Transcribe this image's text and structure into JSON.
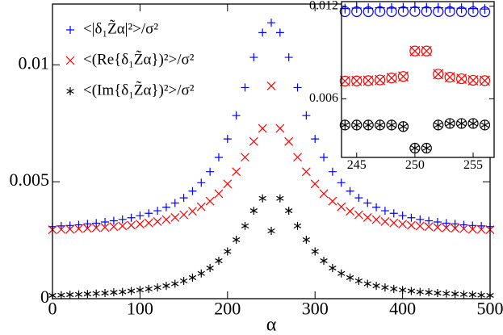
{
  "chart_data": [
    {
      "type": "scatter",
      "xlabel": "α",
      "legend": "upper left",
      "xlim": [
        0,
        500
      ],
      "xticks": [
        0,
        100,
        200,
        300,
        400,
        500
      ],
      "ylim": [
        0,
        0.0126
      ],
      "yticks": [
        0,
        0.005,
        0.01
      ],
      "x": [
        0,
        10,
        20,
        30,
        40,
        50,
        60,
        70,
        80,
        90,
        100,
        110,
        120,
        130,
        140,
        150,
        160,
        170,
        180,
        190,
        200,
        210,
        220,
        230,
        240,
        250,
        260,
        270,
        280,
        290,
        300,
        310,
        320,
        330,
        340,
        350,
        360,
        370,
        380,
        390,
        400,
        410,
        420,
        430,
        440,
        450,
        460,
        470,
        480,
        490,
        500
      ],
      "series": [
        {
          "name": "<|δ₁Z̃α|²>/σ²",
          "color": "#0000ff",
          "marker": "plus",
          "values": [
            0.00308,
            0.00311,
            0.00313,
            0.00316,
            0.0032,
            0.00323,
            0.00328,
            0.00333,
            0.00339,
            0.00346,
            0.00355,
            0.00365,
            0.00376,
            0.00391,
            0.00409,
            0.00431,
            0.0046,
            0.00496,
            0.00543,
            0.00604,
            0.00683,
            0.00783,
            0.00903,
            0.01032,
            0.01138,
            0.0118,
            0.01138,
            0.01032,
            0.00903,
            0.00783,
            0.00683,
            0.00604,
            0.00543,
            0.00496,
            0.0046,
            0.00431,
            0.00409,
            0.00391,
            0.00376,
            0.00365,
            0.00355,
            0.00346,
            0.00339,
            0.00333,
            0.00328,
            0.00323,
            0.0032,
            0.00316,
            0.00313,
            0.00311,
            0.00308
          ]
        },
        {
          "name": "<(Re{δ₁Z̃α})²>/σ²",
          "color": "#ff0000",
          "marker": "cross",
          "values": [
            0.00295,
            0.00296,
            0.00297,
            0.00299,
            0.00301,
            0.00303,
            0.00305,
            0.00308,
            0.00311,
            0.00314,
            0.00319,
            0.00324,
            0.0033,
            0.00338,
            0.00347,
            0.00359,
            0.00374,
            0.00393,
            0.00417,
            0.00449,
            0.00491,
            0.00543,
            0.00605,
            0.00672,
            0.00728,
            0.0091,
            0.00728,
            0.00672,
            0.00605,
            0.00543,
            0.00491,
            0.00449,
            0.00417,
            0.00393,
            0.00374,
            0.00359,
            0.00347,
            0.00338,
            0.0033,
            0.00324,
            0.00319,
            0.00314,
            0.00311,
            0.00308,
            0.00305,
            0.00303,
            0.00301,
            0.00299,
            0.00297,
            0.00296,
            0.00295
          ]
        },
        {
          "name": "<(Im{δ₁Z̃α})²>/σ²",
          "color": "#000000",
          "marker": "star",
          "values": [
            0.00014,
            0.00015,
            0.00017,
            0.00018,
            0.0002,
            0.00022,
            0.00024,
            0.00027,
            0.00029,
            0.00033,
            0.00037,
            0.00042,
            0.00048,
            0.00055,
            0.00064,
            0.00076,
            0.0009,
            0.00108,
            0.00131,
            0.00162,
            0.00202,
            0.00252,
            0.00311,
            0.00376,
            0.00429,
            0.0029,
            0.00429,
            0.00376,
            0.00311,
            0.00252,
            0.00202,
            0.00162,
            0.00131,
            0.00108,
            0.0009,
            0.00076,
            0.00064,
            0.00055,
            0.00048,
            0.00042,
            0.00037,
            0.00033,
            0.00029,
            0.00027,
            0.00024,
            0.00022,
            0.0002,
            0.00018,
            0.00017,
            0.00015,
            0.00014
          ]
        }
      ]
    },
    {
      "type": "scatter",
      "xlim": [
        243.7,
        256.8
      ],
      "xticks": [
        245,
        250,
        255
      ],
      "ylim": [
        0.0022,
        0.0123
      ],
      "yticks": [
        0.006,
        0.012
      ],
      "x": [
        244,
        245,
        246,
        247,
        248,
        249,
        250,
        251,
        252,
        253,
        254,
        255,
        256
      ],
      "series": [
        {
          "color": "#0000ff",
          "marker": "circle",
          "values": [
            0.01165,
            0.01165,
            0.01165,
            0.01166,
            0.01165,
            0.01166,
            0.01166,
            0.01166,
            0.01165,
            0.01166,
            0.01165,
            0.01165,
            0.01164
          ]
        },
        {
          "color": "#0000ff",
          "marker": "plus",
          "values": [
            0.01185,
            0.01188,
            0.01187,
            0.0119,
            0.01188,
            0.0119,
            0.01192,
            0.0119,
            0.0119,
            0.01188,
            0.01187,
            0.01185,
            0.01182
          ]
        },
        {
          "color": "#ff0000",
          "marker": "circle",
          "values": [
            0.00715,
            0.00716,
            0.00718,
            0.00722,
            0.00735,
            0.00745,
            0.0091,
            0.0091,
            0.0076,
            0.0074,
            0.0073,
            0.0072,
            0.00718
          ]
        },
        {
          "color": "#ff0000",
          "marker": "cross",
          "values": [
            0.00715,
            0.00716,
            0.00718,
            0.00722,
            0.00735,
            0.00745,
            0.0091,
            0.0091,
            0.0076,
            0.0074,
            0.0073,
            0.0072,
            0.00718
          ]
        },
        {
          "color": "#000000",
          "marker": "circle",
          "values": [
            0.0043,
            0.0043,
            0.0043,
            0.0043,
            0.0043,
            0.0042,
            0.0028,
            0.0028,
            0.0043,
            0.0044,
            0.0044,
            0.0044,
            0.0043
          ]
        },
        {
          "color": "#000000",
          "marker": "star",
          "values": [
            0.0043,
            0.0043,
            0.0043,
            0.0043,
            0.0043,
            0.0042,
            0.0028,
            0.0028,
            0.0043,
            0.0044,
            0.0044,
            0.0044,
            0.0043
          ]
        }
      ]
    }
  ]
}
